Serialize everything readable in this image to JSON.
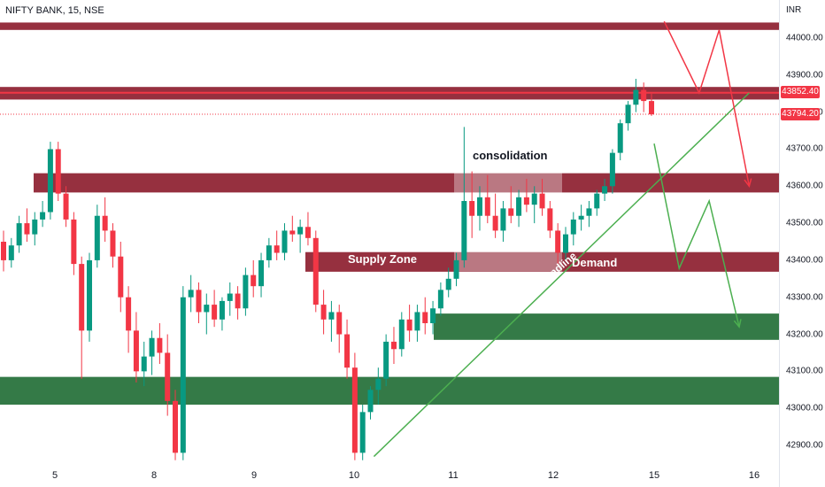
{
  "header": {
    "title": "NIFTY BANK, 15, NSE"
  },
  "currency": "INR",
  "price_tags": {
    "high": "43852.40",
    "last": "43794.20"
  },
  "annotations": {
    "consolidation": "consolidation",
    "supply_zone": "Supply Zone",
    "demand": "Demand",
    "trendline": "Trendline"
  },
  "colors": {
    "up": "#089981",
    "down": "#f23645",
    "supply_zone": "#8b1a2a",
    "demand_zone": "#1e6b33",
    "trendline": "#4caf50",
    "projection_red": "#f23645",
    "projection_green": "#4caf50"
  },
  "chart_data": {
    "type": "candlestick",
    "y_ticks": [
      "44000.00",
      "43900.00",
      "43800.00",
      "43700.00",
      "43600.00",
      "43500.00",
      "43400.00",
      "43300.00",
      "43200.00",
      "43100.00",
      "43000.00",
      "42900.00"
    ],
    "x_ticks": [
      "5",
      "8",
      "9",
      "10",
      "11",
      "12",
      "15",
      "16"
    ],
    "ylim": [
      42860,
      44070
    ],
    "zones": [
      {
        "kind": "supply",
        "from": 44022,
        "to": 44042
      },
      {
        "kind": "supply",
        "from": 43834,
        "to": 43868
      },
      {
        "kind": "supply",
        "from": 43583,
        "to": 43635
      },
      {
        "kind": "supply",
        "from": 43369,
        "to": 43422
      },
      {
        "kind": "demand",
        "from": 43185,
        "to": 43256
      },
      {
        "kind": "demand",
        "from": 43010,
        "to": 43085
      }
    ],
    "levels": [
      43852.4,
      43794.2
    ],
    "trendline": {
      "from": {
        "day": 10.2,
        "price": 42870
      },
      "to": {
        "day": 15.95,
        "price": 43852
      }
    },
    "projection_red": [
      {
        "day": 15.1,
        "price": 44045
      },
      {
        "day": 15.45,
        "price": 43852
      },
      {
        "day": 15.65,
        "price": 44022
      },
      {
        "day": 15.95,
        "price": 43600
      }
    ],
    "projection_green": [
      {
        "day": 15.0,
        "price": 43715
      },
      {
        "day": 15.25,
        "price": 43378
      },
      {
        "day": 15.55,
        "price": 43560
      },
      {
        "day": 15.85,
        "price": 43220
      }
    ],
    "candles": [
      [
        43450,
        43480,
        43370,
        43400
      ],
      [
        43400,
        43460,
        43380,
        43440
      ],
      [
        43440,
        43520,
        43420,
        43500
      ],
      [
        43500,
        43540,
        43450,
        43470
      ],
      [
        43470,
        43530,
        43440,
        43510
      ],
      [
        43510,
        43560,
        43490,
        43530
      ],
      [
        43530,
        43720,
        43510,
        43700
      ],
      [
        43700,
        43720,
        43560,
        43580
      ],
      [
        43580,
        43600,
        43490,
        43510
      ],
      [
        43510,
        43530,
        43360,
        43390
      ],
      [
        43390,
        43410,
        43080,
        43210
      ],
      [
        43210,
        43420,
        43180,
        43400
      ],
      [
        43400,
        43550,
        43380,
        43520
      ],
      [
        43520,
        43570,
        43450,
        43480
      ],
      [
        43480,
        43500,
        43380,
        43410
      ],
      [
        43410,
        43450,
        43260,
        43300
      ],
      [
        43300,
        43330,
        43150,
        43210
      ],
      [
        43210,
        43260,
        43070,
        43100
      ],
      [
        43100,
        43180,
        43060,
        43140
      ],
      [
        43140,
        43210,
        43090,
        43190
      ],
      [
        43190,
        43230,
        43120,
        43150
      ],
      [
        43150,
        43200,
        42980,
        43020
      ],
      [
        43020,
        43050,
        42860,
        42880
      ],
      [
        42880,
        43330,
        42860,
        43300
      ],
      [
        43300,
        43360,
        43260,
        43320
      ],
      [
        43320,
        43340,
        43230,
        43260
      ],
      [
        43260,
        43310,
        43200,
        43280
      ],
      [
        43280,
        43320,
        43220,
        43240
      ],
      [
        43240,
        43300,
        43210,
        43290
      ],
      [
        43290,
        43340,
        43250,
        43310
      ],
      [
        43310,
        43330,
        43240,
        43270
      ],
      [
        43270,
        43380,
        43250,
        43360
      ],
      [
        43360,
        43400,
        43300,
        43330
      ],
      [
        43330,
        43420,
        43300,
        43400
      ],
      [
        43400,
        43460,
        43380,
        43440
      ],
      [
        43440,
        43480,
        43400,
        43420
      ],
      [
        43420,
        43500,
        43400,
        43480
      ],
      [
        43480,
        43520,
        43450,
        43470
      ],
      [
        43470,
        43510,
        43420,
        43490
      ],
      [
        43490,
        43530,
        43440,
        43460
      ],
      [
        43460,
        43480,
        43260,
        43280
      ],
      [
        43280,
        43320,
        43200,
        43240
      ],
      [
        43240,
        43290,
        43180,
        43260
      ],
      [
        43260,
        43280,
        43150,
        43200
      ],
      [
        43200,
        43240,
        43080,
        43110
      ],
      [
        43110,
        43150,
        42860,
        42880
      ],
      [
        42880,
        43010,
        42860,
        42990
      ],
      [
        42990,
        43060,
        42970,
        43050
      ],
      [
        43050,
        43110,
        43010,
        43080
      ],
      [
        43080,
        43200,
        43060,
        43180
      ],
      [
        43180,
        43220,
        43120,
        43160
      ],
      [
        43160,
        43260,
        43140,
        43240
      ],
      [
        43240,
        43280,
        43180,
        43210
      ],
      [
        43210,
        43280,
        43180,
        43260
      ],
      [
        43260,
        43300,
        43200,
        43230
      ],
      [
        43230,
        43290,
        43200,
        43270
      ],
      [
        43270,
        43340,
        43250,
        43320
      ],
      [
        43320,
        43380,
        43300,
        43350
      ],
      [
        43350,
        43420,
        43330,
        43400
      ],
      [
        43400,
        43760,
        43380,
        43560
      ],
      [
        43560,
        43640,
        43460,
        43520
      ],
      [
        43520,
        43600,
        43480,
        43570
      ],
      [
        43570,
        43630,
        43500,
        43520
      ],
      [
        43520,
        43580,
        43460,
        43480
      ],
      [
        43480,
        43560,
        43450,
        43540
      ],
      [
        43540,
        43600,
        43500,
        43520
      ],
      [
        43520,
        43590,
        43490,
        43570
      ],
      [
        43570,
        43620,
        43530,
        43550
      ],
      [
        43550,
        43600,
        43500,
        43580
      ],
      [
        43580,
        43620,
        43520,
        43540
      ],
      [
        43540,
        43560,
        43460,
        43480
      ],
      [
        43480,
        43500,
        43390,
        43420
      ],
      [
        43420,
        43490,
        43400,
        43470
      ],
      [
        43470,
        43530,
        43440,
        43510
      ],
      [
        43510,
        43550,
        43480,
        43520
      ],
      [
        43520,
        43560,
        43490,
        43540
      ],
      [
        43540,
        43590,
        43520,
        43580
      ],
      [
        43580,
        43620,
        43560,
        43600
      ],
      [
        43600,
        43700,
        43580,
        43690
      ],
      [
        43690,
        43780,
        43670,
        43770
      ],
      [
        43770,
        43830,
        43750,
        43820
      ],
      [
        43820,
        43890,
        43800,
        43860
      ],
      [
        43860,
        43880,
        43800,
        43830
      ],
      [
        43830,
        43850,
        43790,
        43794
      ]
    ]
  }
}
